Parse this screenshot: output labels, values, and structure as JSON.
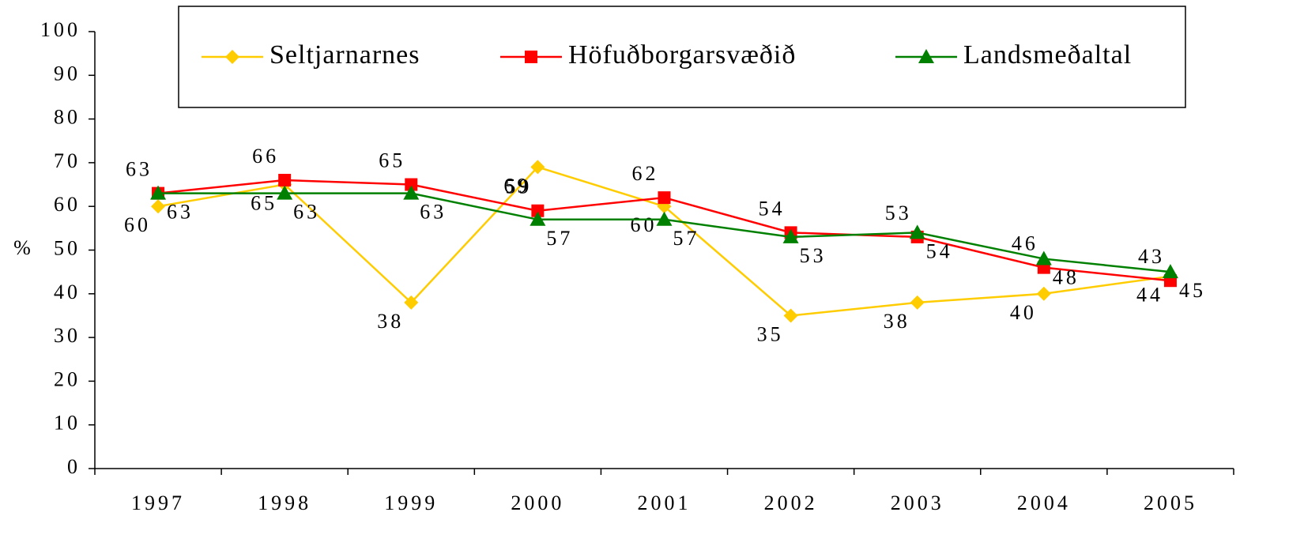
{
  "chart_data": {
    "type": "line",
    "ylabel": "%",
    "categories": [
      "1997",
      "1998",
      "1999",
      "2000",
      "2001",
      "2002",
      "2003",
      "2004",
      "2005"
    ],
    "series": [
      {
        "name": "Seltjarnarnes",
        "color": "#ffcc00",
        "marker": "diamond",
        "values": [
          60,
          65,
          38,
          69,
          60,
          35,
          38,
          40,
          44
        ]
      },
      {
        "name": "Höfuðborgarsvæðið",
        "color": "#ff0000",
        "marker": "square",
        "values": [
          63,
          66,
          65,
          59,
          62,
          54,
          53,
          46,
          43
        ]
      },
      {
        "name": "Landsmeðaltal",
        "color": "#008000",
        "marker": "triangle",
        "values": [
          63,
          63,
          63,
          57,
          57,
          53,
          54,
          48,
          45
        ]
      }
    ],
    "ylim": [
      0,
      100
    ],
    "yticks": [
      0,
      10,
      20,
      30,
      40,
      50,
      60,
      70,
      80,
      90,
      100
    ],
    "legend": "top"
  }
}
